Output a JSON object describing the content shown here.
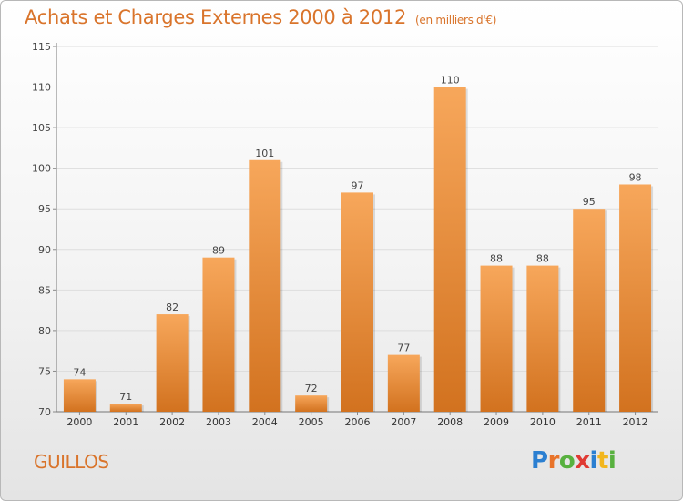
{
  "header": {
    "title": "Achats et Charges Externes 2000 à 2012",
    "unit": "(en milliers d'€)"
  },
  "footer": {
    "city": "GUILLOS",
    "brand": "Proxiti",
    "brand_colors": [
      "#2b7fd1",
      "#e8732a",
      "#58b13f",
      "#e03a33",
      "#2b7fd1",
      "#f2b61e",
      "#58b13f"
    ]
  },
  "colors": {
    "bar_top": "#f7a75b",
    "bar_bottom": "#d2721f",
    "text_accent": "#d9742b",
    "grid": "#dddddd"
  },
  "chart_data": {
    "type": "bar",
    "title": "Achats et Charges Externes 2000 à 2012",
    "subtitle": "(en milliers d'€)",
    "categories": [
      "2000",
      "2001",
      "2002",
      "2003",
      "2004",
      "2005",
      "2006",
      "2007",
      "2008",
      "2009",
      "2010",
      "2011",
      "2012"
    ],
    "values": [
      74,
      71,
      82,
      89,
      101,
      72,
      97,
      77,
      110,
      88,
      88,
      95,
      98
    ],
    "data_labels": [
      "74",
      "71",
      "82",
      "89",
      "101",
      "72",
      "97",
      "77",
      "110",
      "88",
      "88",
      "95",
      "98"
    ],
    "yticks": [
      "70",
      "75",
      "80",
      "85",
      "90",
      "95",
      "100",
      "105",
      "110",
      "115"
    ],
    "ylim": [
      70,
      115
    ],
    "grid": true,
    "legend": "none"
  }
}
